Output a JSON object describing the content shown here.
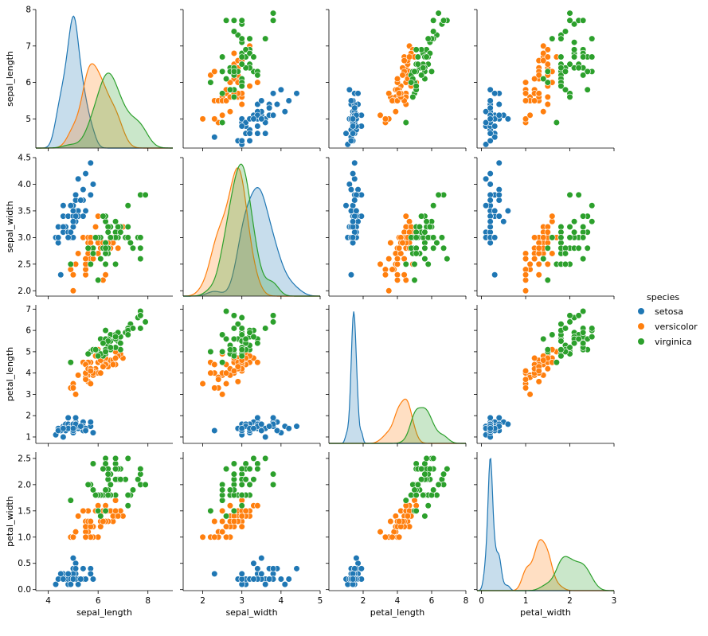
{
  "legend": {
    "title": "species",
    "placement": "right",
    "items": [
      {
        "label": "setosa",
        "color": "#1f77b4"
      },
      {
        "label": "versicolor",
        "color": "#ff7f0e"
      },
      {
        "label": "virginica",
        "color": "#2ca02c"
      }
    ]
  },
  "chart_data": {
    "type": "scatter",
    "layout": "pairplot",
    "grid": false,
    "diagonal": "kde",
    "variables": [
      "sepal_length",
      "sepal_width",
      "petal_length",
      "petal_width"
    ],
    "axes": {
      "sepal_length": {
        "label": "sepal_length",
        "range": [
          3.5,
          9.0
        ],
        "ticks": [
          4,
          6,
          8
        ],
        "row_range": [
          4.2,
          8.0
        ],
        "row_ticks": [
          5,
          6,
          7,
          8
        ]
      },
      "sepal_width": {
        "label": "sepal_width",
        "range": [
          1.5,
          5.0
        ],
        "ticks": [
          2,
          3,
          4,
          5
        ],
        "row_range": [
          1.9,
          4.5
        ],
        "row_ticks": [
          2.0,
          2.5,
          3.0,
          3.5,
          4.0,
          4.5
        ]
      },
      "petal_length": {
        "label": "petal_length",
        "range": [
          0,
          8.0
        ],
        "ticks": [
          2,
          4,
          6,
          8
        ],
        "row_range": [
          0.7,
          7.2
        ],
        "row_ticks": [
          1,
          2,
          3,
          4,
          5,
          6,
          7
        ]
      },
      "petal_width": {
        "label": "petal_width",
        "range": [
          -0.1,
          3.0
        ],
        "ticks": [
          0,
          1,
          2,
          3
        ],
        "row_range": [
          -0.02,
          2.62
        ],
        "row_ticks": [
          0.0,
          0.5,
          1.0,
          1.5,
          2.0,
          2.5
        ]
      }
    },
    "series": [
      {
        "name": "setosa",
        "color": "#1f77b4",
        "points": [
          [
            5.1,
            3.5,
            1.4,
            0.2
          ],
          [
            4.9,
            3.0,
            1.4,
            0.2
          ],
          [
            4.7,
            3.2,
            1.3,
            0.2
          ],
          [
            4.6,
            3.1,
            1.5,
            0.2
          ],
          [
            5.0,
            3.6,
            1.4,
            0.2
          ],
          [
            5.4,
            3.9,
            1.7,
            0.4
          ],
          [
            4.6,
            3.4,
            1.4,
            0.3
          ],
          [
            5.0,
            3.4,
            1.5,
            0.2
          ],
          [
            4.4,
            2.9,
            1.4,
            0.2
          ],
          [
            4.9,
            3.1,
            1.5,
            0.1
          ],
          [
            5.4,
            3.7,
            1.5,
            0.2
          ],
          [
            4.8,
            3.4,
            1.6,
            0.2
          ],
          [
            4.8,
            3.0,
            1.4,
            0.1
          ],
          [
            4.3,
            3.0,
            1.1,
            0.1
          ],
          [
            5.8,
            4.0,
            1.2,
            0.2
          ],
          [
            5.7,
            4.4,
            1.5,
            0.4
          ],
          [
            5.4,
            3.9,
            1.3,
            0.4
          ],
          [
            5.1,
            3.5,
            1.4,
            0.3
          ],
          [
            5.7,
            3.8,
            1.7,
            0.3
          ],
          [
            5.1,
            3.8,
            1.5,
            0.3
          ],
          [
            5.4,
            3.4,
            1.7,
            0.2
          ],
          [
            5.1,
            3.7,
            1.5,
            0.4
          ],
          [
            4.6,
            3.6,
            1.0,
            0.2
          ],
          [
            5.1,
            3.3,
            1.7,
            0.5
          ],
          [
            4.8,
            3.4,
            1.9,
            0.2
          ],
          [
            5.0,
            3.0,
            1.6,
            0.2
          ],
          [
            5.0,
            3.4,
            1.6,
            0.4
          ],
          [
            5.2,
            3.5,
            1.5,
            0.2
          ],
          [
            5.2,
            3.4,
            1.4,
            0.2
          ],
          [
            4.7,
            3.2,
            1.6,
            0.2
          ],
          [
            4.8,
            3.1,
            1.6,
            0.2
          ],
          [
            5.4,
            3.4,
            1.5,
            0.4
          ],
          [
            5.2,
            4.1,
            1.5,
            0.1
          ],
          [
            5.5,
            4.2,
            1.4,
            0.2
          ],
          [
            4.9,
            3.1,
            1.5,
            0.2
          ],
          [
            5.0,
            3.2,
            1.2,
            0.2
          ],
          [
            5.5,
            3.5,
            1.3,
            0.2
          ],
          [
            4.9,
            3.6,
            1.4,
            0.1
          ],
          [
            4.4,
            3.0,
            1.3,
            0.2
          ],
          [
            5.1,
            3.4,
            1.5,
            0.2
          ],
          [
            5.0,
            3.5,
            1.3,
            0.3
          ],
          [
            4.5,
            2.3,
            1.3,
            0.3
          ],
          [
            4.4,
            3.2,
            1.3,
            0.2
          ],
          [
            5.0,
            3.5,
            1.6,
            0.6
          ],
          [
            5.1,
            3.8,
            1.9,
            0.4
          ],
          [
            4.8,
            3.0,
            1.4,
            0.3
          ],
          [
            5.1,
            3.8,
            1.6,
            0.2
          ],
          [
            4.6,
            3.2,
            1.4,
            0.2
          ],
          [
            5.3,
            3.7,
            1.5,
            0.2
          ],
          [
            5.0,
            3.3,
            1.4,
            0.2
          ]
        ]
      },
      {
        "name": "versicolor",
        "color": "#ff7f0e",
        "points": [
          [
            7.0,
            3.2,
            4.7,
            1.4
          ],
          [
            6.4,
            3.2,
            4.5,
            1.5
          ],
          [
            6.9,
            3.1,
            4.9,
            1.5
          ],
          [
            5.5,
            2.3,
            4.0,
            1.3
          ],
          [
            6.5,
            2.8,
            4.6,
            1.5
          ],
          [
            5.7,
            2.8,
            4.5,
            1.3
          ],
          [
            6.3,
            3.3,
            4.7,
            1.6
          ],
          [
            4.9,
            2.4,
            3.3,
            1.0
          ],
          [
            6.6,
            2.9,
            4.6,
            1.3
          ],
          [
            5.2,
            2.7,
            3.9,
            1.4
          ],
          [
            5.0,
            2.0,
            3.5,
            1.0
          ],
          [
            5.9,
            3.0,
            4.2,
            1.5
          ],
          [
            6.0,
            2.2,
            4.0,
            1.0
          ],
          [
            6.1,
            2.9,
            4.7,
            1.4
          ],
          [
            5.6,
            2.9,
            3.6,
            1.3
          ],
          [
            6.7,
            3.1,
            4.4,
            1.4
          ],
          [
            5.6,
            3.0,
            4.5,
            1.5
          ],
          [
            5.8,
            2.7,
            4.1,
            1.0
          ],
          [
            6.2,
            2.2,
            4.5,
            1.5
          ],
          [
            5.6,
            2.5,
            3.9,
            1.1
          ],
          [
            5.9,
            3.2,
            4.8,
            1.8
          ],
          [
            6.1,
            2.8,
            4.0,
            1.3
          ],
          [
            6.3,
            2.5,
            4.9,
            1.5
          ],
          [
            6.1,
            2.8,
            4.7,
            1.2
          ],
          [
            6.4,
            2.9,
            4.3,
            1.3
          ],
          [
            6.6,
            3.0,
            4.4,
            1.4
          ],
          [
            6.8,
            2.8,
            4.8,
            1.4
          ],
          [
            6.7,
            3.0,
            5.0,
            1.7
          ],
          [
            6.0,
            2.9,
            4.5,
            1.5
          ],
          [
            5.7,
            2.6,
            3.5,
            1.0
          ],
          [
            5.5,
            2.4,
            3.8,
            1.1
          ],
          [
            5.5,
            2.4,
            3.7,
            1.0
          ],
          [
            5.8,
            2.7,
            3.9,
            1.2
          ],
          [
            6.0,
            2.7,
            5.1,
            1.6
          ],
          [
            5.4,
            3.0,
            4.5,
            1.5
          ],
          [
            6.0,
            3.4,
            4.5,
            1.6
          ],
          [
            6.7,
            3.1,
            4.7,
            1.5
          ],
          [
            6.3,
            2.3,
            4.4,
            1.3
          ],
          [
            5.6,
            3.0,
            4.1,
            1.3
          ],
          [
            5.5,
            2.5,
            4.0,
            1.3
          ],
          [
            5.5,
            2.6,
            4.4,
            1.2
          ],
          [
            6.1,
            3.0,
            4.6,
            1.4
          ],
          [
            5.8,
            2.6,
            4.0,
            1.2
          ],
          [
            5.0,
            2.3,
            3.3,
            1.0
          ],
          [
            5.6,
            2.7,
            4.2,
            1.3
          ],
          [
            5.7,
            3.0,
            4.2,
            1.2
          ],
          [
            5.7,
            2.9,
            4.2,
            1.3
          ],
          [
            6.2,
            2.9,
            4.3,
            1.3
          ],
          [
            5.1,
            2.5,
            3.0,
            1.1
          ],
          [
            5.7,
            2.8,
            4.1,
            1.3
          ]
        ]
      },
      {
        "name": "virginica",
        "color": "#2ca02c",
        "points": [
          [
            6.3,
            3.3,
            6.0,
            2.5
          ],
          [
            5.8,
            2.7,
            5.1,
            1.9
          ],
          [
            7.1,
            3.0,
            5.9,
            2.1
          ],
          [
            6.3,
            2.9,
            5.6,
            1.8
          ],
          [
            6.5,
            3.0,
            5.8,
            2.2
          ],
          [
            7.6,
            3.0,
            6.6,
            2.1
          ],
          [
            4.9,
            2.5,
            4.5,
            1.7
          ],
          [
            7.3,
            2.9,
            6.3,
            1.8
          ],
          [
            6.7,
            2.5,
            5.8,
            1.8
          ],
          [
            7.2,
            3.6,
            6.1,
            2.5
          ],
          [
            6.5,
            3.2,
            5.1,
            2.0
          ],
          [
            6.4,
            2.7,
            5.3,
            1.9
          ],
          [
            6.8,
            3.0,
            5.5,
            2.1
          ],
          [
            5.7,
            2.5,
            5.0,
            2.0
          ],
          [
            5.8,
            2.8,
            5.1,
            2.4
          ],
          [
            6.4,
            3.2,
            5.3,
            2.3
          ],
          [
            6.5,
            3.0,
            5.5,
            1.8
          ],
          [
            7.7,
            3.8,
            6.7,
            2.2
          ],
          [
            7.7,
            2.6,
            6.9,
            2.3
          ],
          [
            6.0,
            2.2,
            5.0,
            1.5
          ],
          [
            6.9,
            3.2,
            5.7,
            2.3
          ],
          [
            5.6,
            2.8,
            4.9,
            2.0
          ],
          [
            7.7,
            2.8,
            6.7,
            2.0
          ],
          [
            6.3,
            2.7,
            4.9,
            1.8
          ],
          [
            6.7,
            3.3,
            5.7,
            2.1
          ],
          [
            7.2,
            3.2,
            6.0,
            1.8
          ],
          [
            6.2,
            2.8,
            4.8,
            1.8
          ],
          [
            6.1,
            3.0,
            4.9,
            1.8
          ],
          [
            6.4,
            2.8,
            5.6,
            2.1
          ],
          [
            7.2,
            3.0,
            5.8,
            1.6
          ],
          [
            7.4,
            2.8,
            6.1,
            1.9
          ],
          [
            7.9,
            3.8,
            6.4,
            2.0
          ],
          [
            6.4,
            2.8,
            5.6,
            2.2
          ],
          [
            6.3,
            2.8,
            5.1,
            1.5
          ],
          [
            6.1,
            2.6,
            5.6,
            1.4
          ],
          [
            7.7,
            3.0,
            6.1,
            2.3
          ],
          [
            6.3,
            3.4,
            5.6,
            2.4
          ],
          [
            6.4,
            3.1,
            5.5,
            1.8
          ],
          [
            6.0,
            3.0,
            4.8,
            1.8
          ],
          [
            6.9,
            3.1,
            5.4,
            2.1
          ],
          [
            6.7,
            3.1,
            5.6,
            2.4
          ],
          [
            6.9,
            3.1,
            5.1,
            2.3
          ],
          [
            5.8,
            2.7,
            5.1,
            1.9
          ],
          [
            6.8,
            3.2,
            5.9,
            2.3
          ],
          [
            6.7,
            3.3,
            5.7,
            2.5
          ],
          [
            6.7,
            3.0,
            5.2,
            2.3
          ],
          [
            6.3,
            2.5,
            5.0,
            1.9
          ],
          [
            6.5,
            3.0,
            5.2,
            2.0
          ],
          [
            6.2,
            3.4,
            5.4,
            2.3
          ],
          [
            5.9,
            3.0,
            5.1,
            1.8
          ]
        ]
      }
    ]
  }
}
